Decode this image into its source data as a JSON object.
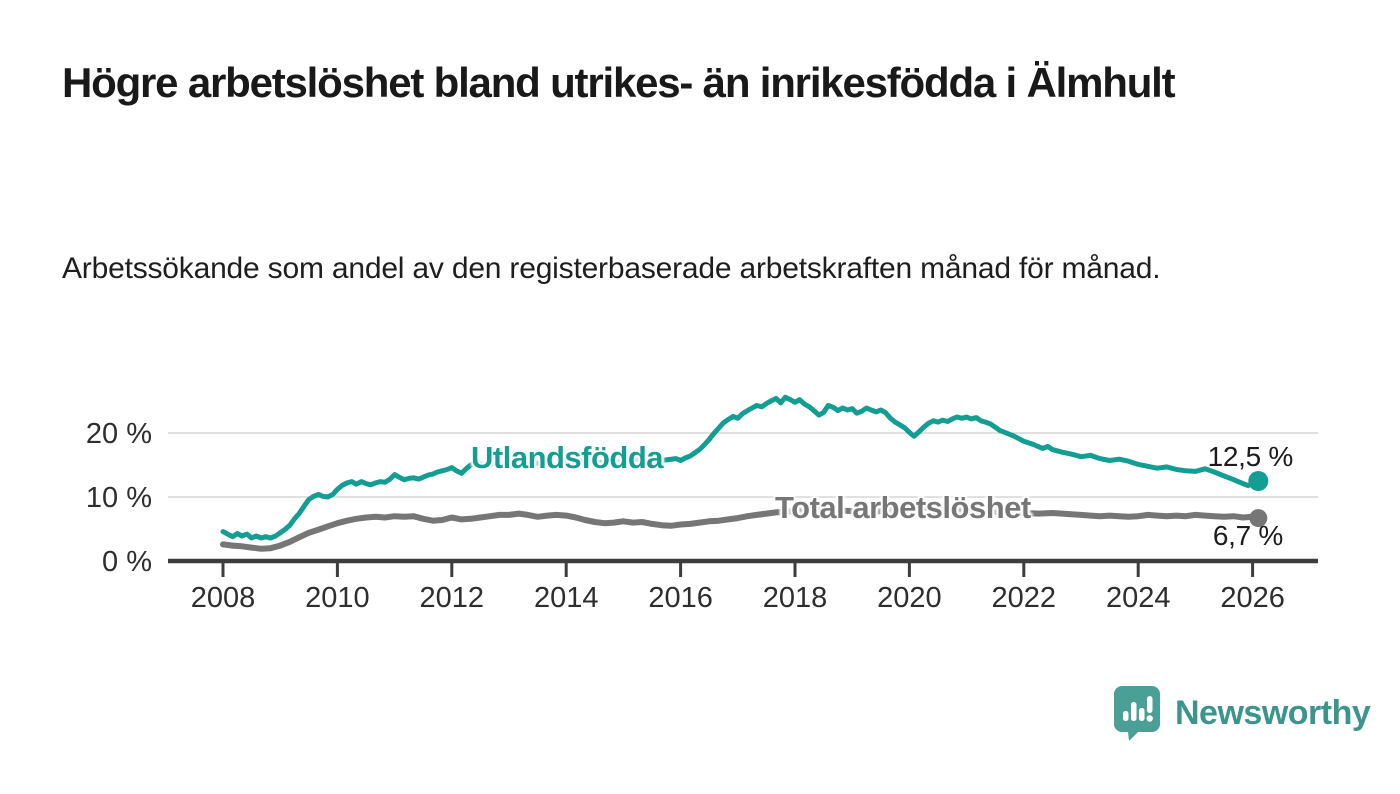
{
  "header": {
    "title": "Högre arbetslöshet bland utrikes- än inrikesfödda i Älmhult",
    "subtitle": "Arbetssökande som andel av den registerbaserade arbetskraften månad för månad."
  },
  "chart_data": {
    "type": "line",
    "title": "Högre arbetslöshet bland utrikes- än inrikesfödda i Älmhult",
    "subtitle": "Arbetssökande som andel av den registerbaserade arbetskraften månad för månad.",
    "grid": "horizontal-gridlines-at-10-and-20",
    "legend_position": "inline-labels-on-lines",
    "x_axis": {
      "range": [
        2007.9,
        2027.1
      ],
      "ticks": [
        2008,
        2010,
        2012,
        2014,
        2016,
        2018,
        2020,
        2022,
        2024,
        2026
      ]
    },
    "y_axis": {
      "range": [
        0,
        26
      ],
      "ticks": [
        {
          "value": 0,
          "label": "0 %"
        },
        {
          "value": 10,
          "label": "10 %"
        },
        {
          "value": 20,
          "label": "20 %"
        }
      ]
    },
    "colors": {
      "utlandsfodda": "#149d93",
      "total": "#767676",
      "axis": "#3d3d3d",
      "grid": "#d6d6d6"
    },
    "series": [
      {
        "name": "Utlandsfödda",
        "color": "#149d93",
        "end_label": "12,5 %",
        "end_value": 12.5,
        "points": [
          [
            2008.0,
            4.6
          ],
          [
            2008.08,
            4.2
          ],
          [
            2008.17,
            3.8
          ],
          [
            2008.25,
            4.3
          ],
          [
            2008.33,
            3.9
          ],
          [
            2008.42,
            4.2
          ],
          [
            2008.5,
            3.6
          ],
          [
            2008.58,
            3.9
          ],
          [
            2008.67,
            3.6
          ],
          [
            2008.75,
            3.8
          ],
          [
            2008.83,
            3.6
          ],
          [
            2008.92,
            3.9
          ],
          [
            2009.0,
            4.4
          ],
          [
            2009.08,
            4.9
          ],
          [
            2009.17,
            5.6
          ],
          [
            2009.25,
            6.6
          ],
          [
            2009.33,
            7.4
          ],
          [
            2009.42,
            8.6
          ],
          [
            2009.5,
            9.6
          ],
          [
            2009.58,
            10.1
          ],
          [
            2009.67,
            10.4
          ],
          [
            2009.75,
            10.1
          ],
          [
            2009.83,
            10.0
          ],
          [
            2009.92,
            10.4
          ],
          [
            2010.0,
            11.2
          ],
          [
            2010.08,
            11.8
          ],
          [
            2010.17,
            12.2
          ],
          [
            2010.25,
            12.4
          ],
          [
            2010.33,
            12.0
          ],
          [
            2010.42,
            12.4
          ],
          [
            2010.5,
            12.1
          ],
          [
            2010.58,
            11.9
          ],
          [
            2010.67,
            12.2
          ],
          [
            2010.75,
            12.4
          ],
          [
            2010.83,
            12.3
          ],
          [
            2010.92,
            12.8
          ],
          [
            2011.0,
            13.5
          ],
          [
            2011.08,
            13.1
          ],
          [
            2011.17,
            12.7
          ],
          [
            2011.25,
            12.9
          ],
          [
            2011.33,
            13.0
          ],
          [
            2011.42,
            12.8
          ],
          [
            2011.5,
            13.1
          ],
          [
            2011.58,
            13.4
          ],
          [
            2011.67,
            13.6
          ],
          [
            2011.75,
            13.9
          ],
          [
            2011.83,
            14.1
          ],
          [
            2011.92,
            14.3
          ],
          [
            2012.0,
            14.6
          ],
          [
            2012.08,
            14.1
          ],
          [
            2012.17,
            13.7
          ],
          [
            2012.25,
            14.4
          ],
          [
            2012.33,
            15.0
          ],
          [
            2012.42,
            15.4
          ],
          [
            2012.5,
            15.2
          ],
          [
            2012.58,
            15.0
          ],
          [
            2012.67,
            15.1
          ],
          [
            2012.75,
            15.3
          ],
          [
            2012.83,
            15.1
          ],
          [
            2012.92,
            15.0
          ],
          [
            2013.0,
            15.3
          ],
          [
            2013.25,
            15.6
          ],
          [
            2013.5,
            15.3
          ],
          [
            2013.75,
            15.0
          ],
          [
            2014.0,
            15.4
          ],
          [
            2014.25,
            15.7
          ],
          [
            2014.5,
            15.5
          ],
          [
            2014.75,
            15.2
          ],
          [
            2015.0,
            15.6
          ],
          [
            2015.25,
            15.9
          ],
          [
            2015.5,
            15.6
          ],
          [
            2015.75,
            15.8
          ],
          [
            2015.92,
            16.0
          ],
          [
            2016.0,
            15.7
          ],
          [
            2016.08,
            16.1
          ],
          [
            2016.17,
            16.4
          ],
          [
            2016.25,
            16.9
          ],
          [
            2016.33,
            17.4
          ],
          [
            2016.42,
            18.2
          ],
          [
            2016.5,
            19.0
          ],
          [
            2016.58,
            19.9
          ],
          [
            2016.67,
            20.8
          ],
          [
            2016.75,
            21.6
          ],
          [
            2016.83,
            22.1
          ],
          [
            2016.92,
            22.6
          ],
          [
            2017.0,
            22.3
          ],
          [
            2017.08,
            23.0
          ],
          [
            2017.17,
            23.5
          ],
          [
            2017.25,
            23.9
          ],
          [
            2017.33,
            24.3
          ],
          [
            2017.42,
            24.1
          ],
          [
            2017.5,
            24.6
          ],
          [
            2017.58,
            25.0
          ],
          [
            2017.67,
            25.4
          ],
          [
            2017.75,
            24.7
          ],
          [
            2017.83,
            25.6
          ],
          [
            2017.92,
            25.2
          ],
          [
            2018.0,
            24.8
          ],
          [
            2018.08,
            25.2
          ],
          [
            2018.17,
            24.5
          ],
          [
            2018.25,
            24.1
          ],
          [
            2018.33,
            23.5
          ],
          [
            2018.42,
            22.8
          ],
          [
            2018.5,
            23.2
          ],
          [
            2018.58,
            24.3
          ],
          [
            2018.67,
            24.0
          ],
          [
            2018.75,
            23.5
          ],
          [
            2018.83,
            23.9
          ],
          [
            2018.92,
            23.6
          ],
          [
            2019.0,
            23.8
          ],
          [
            2019.08,
            23.1
          ],
          [
            2019.17,
            23.4
          ],
          [
            2019.25,
            23.9
          ],
          [
            2019.33,
            23.6
          ],
          [
            2019.42,
            23.3
          ],
          [
            2019.5,
            23.6
          ],
          [
            2019.58,
            23.2
          ],
          [
            2019.67,
            22.3
          ],
          [
            2019.75,
            21.7
          ],
          [
            2019.83,
            21.3
          ],
          [
            2019.92,
            20.8
          ],
          [
            2020.0,
            20.1
          ],
          [
            2020.08,
            19.5
          ],
          [
            2020.17,
            20.2
          ],
          [
            2020.25,
            20.9
          ],
          [
            2020.33,
            21.5
          ],
          [
            2020.42,
            21.9
          ],
          [
            2020.5,
            21.7
          ],
          [
            2020.58,
            22.0
          ],
          [
            2020.67,
            21.8
          ],
          [
            2020.75,
            22.2
          ],
          [
            2020.83,
            22.5
          ],
          [
            2020.92,
            22.3
          ],
          [
            2021.0,
            22.5
          ],
          [
            2021.08,
            22.2
          ],
          [
            2021.17,
            22.4
          ],
          [
            2021.25,
            21.9
          ],
          [
            2021.33,
            21.7
          ],
          [
            2021.42,
            21.4
          ],
          [
            2021.5,
            20.9
          ],
          [
            2021.58,
            20.4
          ],
          [
            2021.67,
            20.1
          ],
          [
            2021.75,
            19.8
          ],
          [
            2021.83,
            19.5
          ],
          [
            2021.92,
            19.1
          ],
          [
            2022.0,
            18.7
          ],
          [
            2022.17,
            18.2
          ],
          [
            2022.33,
            17.6
          ],
          [
            2022.42,
            17.9
          ],
          [
            2022.5,
            17.4
          ],
          [
            2022.67,
            17.0
          ],
          [
            2022.83,
            16.7
          ],
          [
            2023.0,
            16.3
          ],
          [
            2023.17,
            16.5
          ],
          [
            2023.33,
            16.0
          ],
          [
            2023.5,
            15.7
          ],
          [
            2023.67,
            15.9
          ],
          [
            2023.83,
            15.6
          ],
          [
            2024.0,
            15.1
          ],
          [
            2024.17,
            14.8
          ],
          [
            2024.33,
            14.5
          ],
          [
            2024.5,
            14.7
          ],
          [
            2024.67,
            14.3
          ],
          [
            2024.83,
            14.1
          ],
          [
            2025.0,
            14.0
          ],
          [
            2025.17,
            14.4
          ],
          [
            2025.33,
            13.9
          ],
          [
            2025.5,
            13.3
          ],
          [
            2025.67,
            12.7
          ],
          [
            2025.83,
            12.1
          ],
          [
            2025.92,
            11.8
          ],
          [
            2026.0,
            12.0
          ],
          [
            2026.1,
            12.5
          ]
        ]
      },
      {
        "name": "Total arbetslöshet",
        "color": "#767676",
        "end_label": "6,7 %",
        "end_value": 6.7,
        "points": [
          [
            2008.0,
            2.6
          ],
          [
            2008.17,
            2.4
          ],
          [
            2008.33,
            2.3
          ],
          [
            2008.5,
            2.1
          ],
          [
            2008.67,
            1.9
          ],
          [
            2008.83,
            2.0
          ],
          [
            2009.0,
            2.4
          ],
          [
            2009.17,
            3.0
          ],
          [
            2009.33,
            3.7
          ],
          [
            2009.5,
            4.4
          ],
          [
            2009.67,
            4.9
          ],
          [
            2009.83,
            5.4
          ],
          [
            2010.0,
            5.9
          ],
          [
            2010.17,
            6.3
          ],
          [
            2010.33,
            6.6
          ],
          [
            2010.5,
            6.8
          ],
          [
            2010.67,
            6.9
          ],
          [
            2010.83,
            6.8
          ],
          [
            2011.0,
            7.0
          ],
          [
            2011.17,
            6.9
          ],
          [
            2011.33,
            7.0
          ],
          [
            2011.5,
            6.6
          ],
          [
            2011.67,
            6.3
          ],
          [
            2011.83,
            6.4
          ],
          [
            2012.0,
            6.8
          ],
          [
            2012.17,
            6.5
          ],
          [
            2012.33,
            6.6
          ],
          [
            2012.5,
            6.8
          ],
          [
            2012.67,
            7.0
          ],
          [
            2012.83,
            7.2
          ],
          [
            2013.0,
            7.2
          ],
          [
            2013.17,
            7.4
          ],
          [
            2013.33,
            7.2
          ],
          [
            2013.5,
            6.9
          ],
          [
            2013.67,
            7.1
          ],
          [
            2013.83,
            7.2
          ],
          [
            2014.0,
            7.1
          ],
          [
            2014.17,
            6.8
          ],
          [
            2014.33,
            6.4
          ],
          [
            2014.5,
            6.1
          ],
          [
            2014.67,
            5.9
          ],
          [
            2014.83,
            6.0
          ],
          [
            2015.0,
            6.2
          ],
          [
            2015.17,
            6.0
          ],
          [
            2015.33,
            6.1
          ],
          [
            2015.5,
            5.8
          ],
          [
            2015.67,
            5.6
          ],
          [
            2015.83,
            5.5
          ],
          [
            2016.0,
            5.7
          ],
          [
            2016.17,
            5.8
          ],
          [
            2016.33,
            6.0
          ],
          [
            2016.5,
            6.2
          ],
          [
            2016.67,
            6.3
          ],
          [
            2016.83,
            6.5
          ],
          [
            2017.0,
            6.7
          ],
          [
            2017.17,
            7.0
          ],
          [
            2017.33,
            7.2
          ],
          [
            2017.5,
            7.4
          ],
          [
            2017.67,
            7.6
          ],
          [
            2017.83,
            7.7
          ],
          [
            2018.0,
            7.8
          ],
          [
            2018.25,
            7.9
          ],
          [
            2018.5,
            8.0
          ],
          [
            2018.75,
            7.9
          ],
          [
            2019.0,
            7.8
          ],
          [
            2019.25,
            7.7
          ],
          [
            2019.5,
            7.8
          ],
          [
            2019.75,
            7.9
          ],
          [
            2020.0,
            8.1
          ],
          [
            2020.25,
            8.3
          ],
          [
            2020.5,
            8.2
          ],
          [
            2020.75,
            8.0
          ],
          [
            2021.0,
            7.9
          ],
          [
            2021.25,
            7.8
          ],
          [
            2021.5,
            7.7
          ],
          [
            2021.75,
            7.6
          ],
          [
            2022.0,
            7.5
          ],
          [
            2022.25,
            7.4
          ],
          [
            2022.5,
            7.5
          ],
          [
            2022.67,
            7.4
          ],
          [
            2022.83,
            7.3
          ],
          [
            2023.0,
            7.2
          ],
          [
            2023.17,
            7.1
          ],
          [
            2023.33,
            7.0
          ],
          [
            2023.5,
            7.1
          ],
          [
            2023.67,
            7.0
          ],
          [
            2023.83,
            6.9
          ],
          [
            2024.0,
            7.0
          ],
          [
            2024.17,
            7.2
          ],
          [
            2024.33,
            7.1
          ],
          [
            2024.5,
            7.0
          ],
          [
            2024.67,
            7.1
          ],
          [
            2024.83,
            7.0
          ],
          [
            2025.0,
            7.2
          ],
          [
            2025.17,
            7.1
          ],
          [
            2025.33,
            7.0
          ],
          [
            2025.5,
            6.9
          ],
          [
            2025.67,
            7.0
          ],
          [
            2025.83,
            6.8
          ],
          [
            2026.0,
            6.9
          ],
          [
            2026.1,
            6.7
          ]
        ]
      }
    ]
  },
  "footer": {
    "brand": "Newsworthy",
    "logo_icon": "newsworthy-speech-bubble-bar-chart-icon",
    "brand_color": "#3c958c"
  }
}
